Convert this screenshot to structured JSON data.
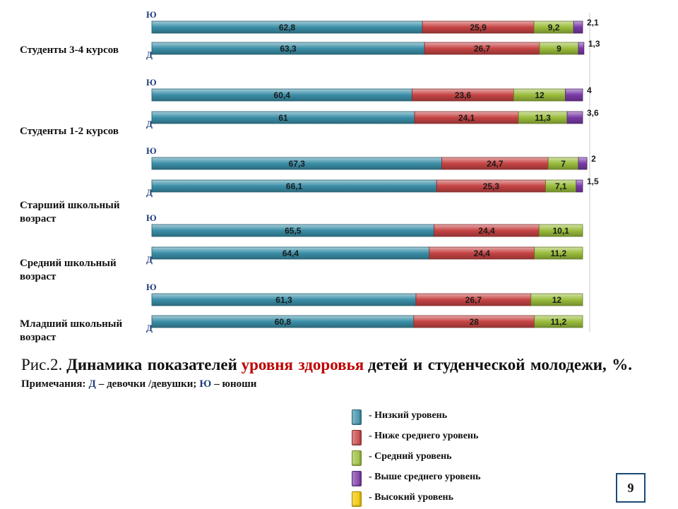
{
  "chart_data": {
    "type": "bar",
    "orientation": "horizontal",
    "stacked": true,
    "unit": "%",
    "legend_position": "bottom-right",
    "series": [
      {
        "name": "- Низкий уровень",
        "color": "#3b8fa8"
      },
      {
        "name": "- Ниже среднего уровень",
        "color": "#c64444"
      },
      {
        "name": "- Средний уровень",
        "color": "#9abd3c"
      },
      {
        "name": "- Выше среднего уровень",
        "color": "#7a3aa6"
      },
      {
        "name": "- Высокий уровень",
        "color": "#f2c400"
      }
    ],
    "groups": [
      {
        "label": "Студенты 3-4 курсов",
        "bars": [
          {
            "side": "Ю",
            "values": [
              {
                "v": 62.8,
                "t": "62,8"
              },
              {
                "v": 25.9,
                "t": "25,9"
              },
              {
                "v": 9.2,
                "t": "9,2"
              },
              {
                "v": 2.1,
                "t": "2,1"
              }
            ]
          },
          {
            "side": "Д",
            "values": [
              {
                "v": 63.3,
                "t": "63,3"
              },
              {
                "v": 26.7,
                "t": "26,7"
              },
              {
                "v": 9,
                "t": "9"
              },
              {
                "v": 1.3,
                "t": "1,3"
              }
            ]
          }
        ]
      },
      {
        "label": "Студенты 1-2 курсов",
        "bars": [
          {
            "side": "Ю",
            "values": [
              {
                "v": 60.4,
                "t": "60,4"
              },
              {
                "v": 23.6,
                "t": "23,6"
              },
              {
                "v": 12,
                "t": "12"
              },
              {
                "v": 4,
                "t": "4"
              }
            ]
          },
          {
            "side": "Д",
            "values": [
              {
                "v": 61,
                "t": "61"
              },
              {
                "v": 24.1,
                "t": "24,1"
              },
              {
                "v": 11.3,
                "t": "11,3"
              },
              {
                "v": 3.6,
                "t": "3,6"
              }
            ]
          }
        ]
      },
      {
        "label": "Старший школьный возраст",
        "bars": [
          {
            "side": "Ю",
            "values": [
              {
                "v": 67.3,
                "t": "67,3"
              },
              {
                "v": 24.7,
                "t": "24,7"
              },
              {
                "v": 7,
                "t": "7"
              },
              {
                "v": 2,
                "t": "2"
              }
            ]
          },
          {
            "side": "Д",
            "values": [
              {
                "v": 66.1,
                "t": "66,1"
              },
              {
                "v": 25.3,
                "t": "25,3"
              },
              {
                "v": 7.1,
                "t": "7,1"
              },
              {
                "v": 1.5,
                "t": "1,5"
              }
            ]
          }
        ]
      },
      {
        "label": "Средний школьный возраст",
        "bars": [
          {
            "side": "Ю",
            "values": [
              {
                "v": 65.5,
                "t": "65,5"
              },
              {
                "v": 24.4,
                "t": "24,4"
              },
              {
                "v": 10.1,
                "t": "10,1"
              }
            ]
          },
          {
            "side": "Д",
            "values": [
              {
                "v": 64.4,
                "t": "64,4"
              },
              {
                "v": 24.4,
                "t": "24,4"
              },
              {
                "v": 11.2,
                "t": "11,2"
              }
            ]
          }
        ]
      },
      {
        "label": "Младший школьный возраст",
        "bars": [
          {
            "side": "Ю",
            "values": [
              {
                "v": 61.3,
                "t": "61,3"
              },
              {
                "v": 26.7,
                "t": "26,7"
              },
              {
                "v": 12,
                "t": "12"
              }
            ]
          },
          {
            "side": "Д",
            "values": [
              {
                "v": 60.8,
                "t": "60,8"
              },
              {
                "v": 28,
                "t": "28"
              },
              {
                "v": 11.2,
                "t": "11,2"
              }
            ]
          }
        ]
      }
    ]
  },
  "caption": {
    "fig_number": "Рис.2.",
    "title_part1": "Динамика показателей",
    "title_red": "уровня здоровья",
    "title_part2": "детей и студенческой молодежи, %.",
    "note_prefix": "Примечания:",
    "note_d": "Д",
    "note_d_text": "– девочки /девушки;",
    "note_yu": "Ю",
    "note_yu_text": "– юноши"
  },
  "page_number": "9"
}
